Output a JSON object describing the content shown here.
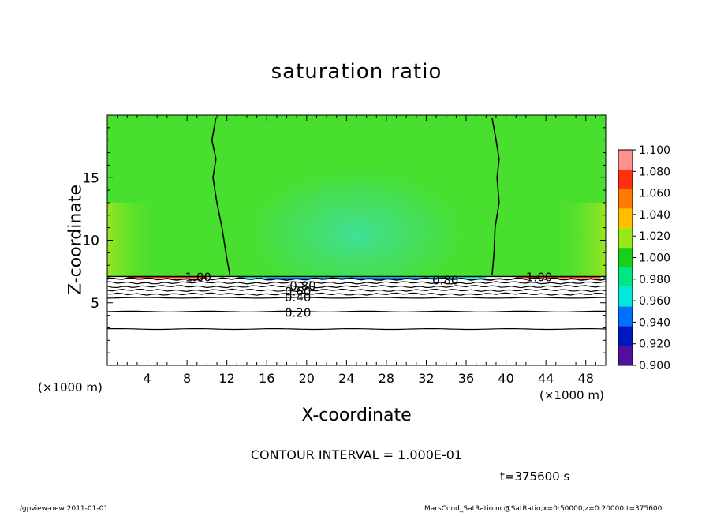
{
  "figure": {
    "title": "saturation ratio",
    "contour_interval_text": "CONTOUR INTERVAL = 1.000E-01",
    "time_text": "t=375600 s",
    "x_unit_left": "(×1000 m)",
    "x_unit_right": "(×1000 m)",
    "footer_left": "./gpview-new  2011-01-01",
    "footer_right": "MarsCond_SatRatio.nc@SatRatio,x=0:50000,z=0:20000,t=375600"
  },
  "chart_data": {
    "type": "heatmap",
    "title": "saturation ratio",
    "xlabel": "X-coordinate",
    "ylabel": "Z-coordinate",
    "xlim": [
      0,
      50
    ],
    "ylim": [
      0,
      20
    ],
    "x_unit": "×1000 m",
    "x_ticks": [
      4,
      8,
      12,
      16,
      20,
      24,
      28,
      32,
      36,
      40,
      44,
      48
    ],
    "y_ticks": [
      5,
      10,
      15
    ],
    "colorbar": {
      "levels": [
        "1.100",
        "1.080",
        "1.060",
        "1.040",
        "1.020",
        "1.000",
        "0.980",
        "0.960",
        "0.940",
        "0.920",
        "0.900"
      ],
      "colors": [
        "#ff9090",
        "#ff3010",
        "#ff7a00",
        "#ffbe00",
        "#98e818",
        "#18d018",
        "#00e682",
        "#00e8d8",
        "#0070ff",
        "#0018c0",
        "#5010a0"
      ]
    },
    "background_color": "#48df2e",
    "contour_labels": [
      {
        "text": "1.00",
        "x": 7.8,
        "y": 7.1
      },
      {
        "text": "1.00",
        "x": 42.0,
        "y": 7.1
      },
      {
        "text": "0.80",
        "x": 18.3,
        "y": 6.4
      },
      {
        "text": "0.60",
        "x": 17.8,
        "y": 5.95
      },
      {
        "text": "0.40",
        "x": 17.8,
        "y": 5.5
      },
      {
        "text": "0.20",
        "x": 17.8,
        "y": 4.25
      },
      {
        "text": "0.80",
        "x": 32.6,
        "y": 6.85
      }
    ],
    "saturation_contour_level": 1.0,
    "condensation_boundaries": [
      {
        "points": [
          [
            10.9,
            19.8
          ],
          [
            10.5,
            18
          ],
          [
            10.9,
            16.5
          ],
          [
            10.6,
            15
          ],
          [
            11.0,
            13
          ],
          [
            11.5,
            11
          ],
          [
            12.0,
            8.5
          ],
          [
            12.3,
            7.2
          ]
        ]
      },
      {
        "points": [
          [
            38.6,
            19.8
          ],
          [
            39.0,
            18
          ],
          [
            39.3,
            16.5
          ],
          [
            39.1,
            15
          ],
          [
            39.3,
            13
          ],
          [
            38.9,
            11
          ],
          [
            38.8,
            9
          ],
          [
            38.6,
            7.2
          ]
        ]
      }
    ],
    "stable_layer_top_z": 7.1,
    "low_contour_levels_z": [
      6.9,
      6.6,
      6.3,
      6.0,
      5.7,
      5.4,
      4.3,
      2.9
    ]
  }
}
